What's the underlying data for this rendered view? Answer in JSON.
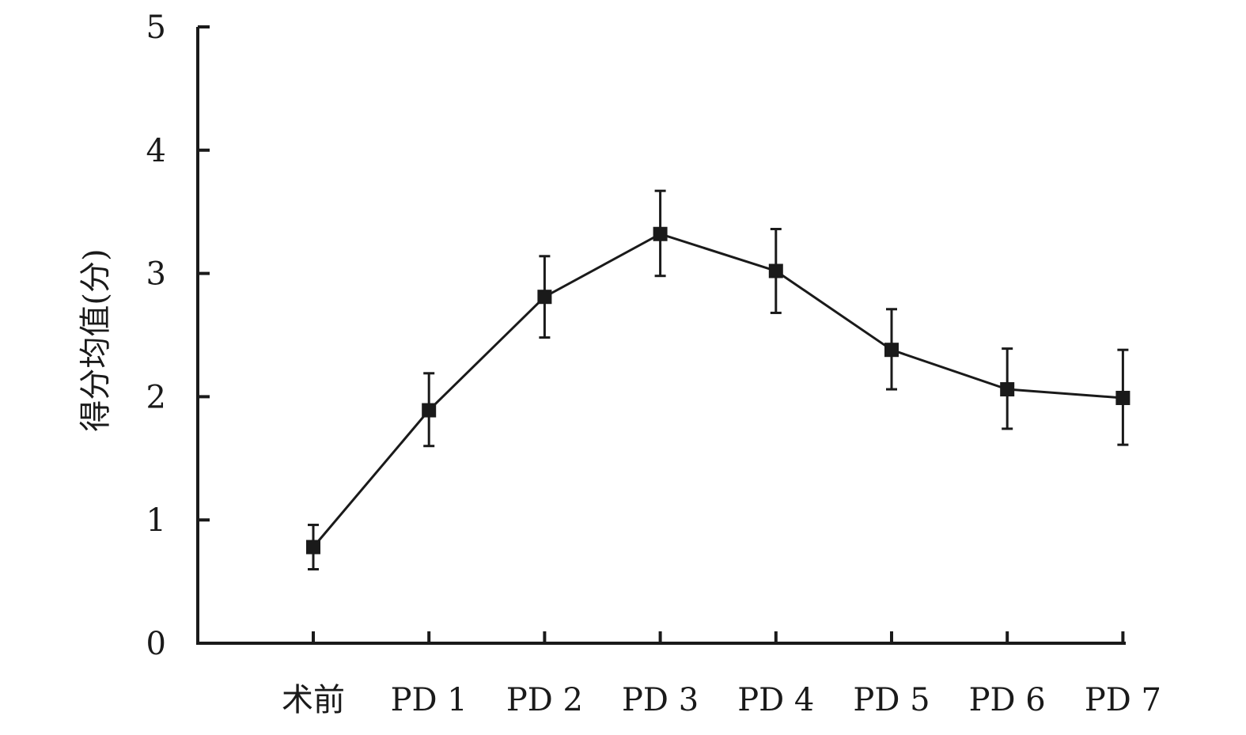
{
  "chart_data": {
    "type": "line",
    "title": "",
    "xlabel": "",
    "ylabel": "得分均值(分)",
    "ylim": [
      0,
      5
    ],
    "yticks": [
      0,
      1,
      2,
      3,
      4,
      5
    ],
    "grid": false,
    "legend": "none",
    "categories": [
      "术前",
      "PD 1",
      "PD 2",
      "PD 3",
      "PD 4",
      "PD 5",
      "PD 6",
      "PD 7"
    ],
    "series": [
      {
        "values": [
          0.78,
          1.89,
          2.81,
          3.32,
          3.02,
          2.38,
          2.06,
          1.99
        ],
        "error_upper": [
          0.96,
          2.19,
          3.14,
          3.67,
          3.36,
          2.71,
          2.39,
          2.38
        ],
        "error_lower": [
          0.6,
          1.6,
          2.48,
          2.98,
          2.68,
          2.06,
          1.74,
          1.61
        ],
        "color": "#1a1a1a",
        "marker": "square"
      }
    ]
  }
}
